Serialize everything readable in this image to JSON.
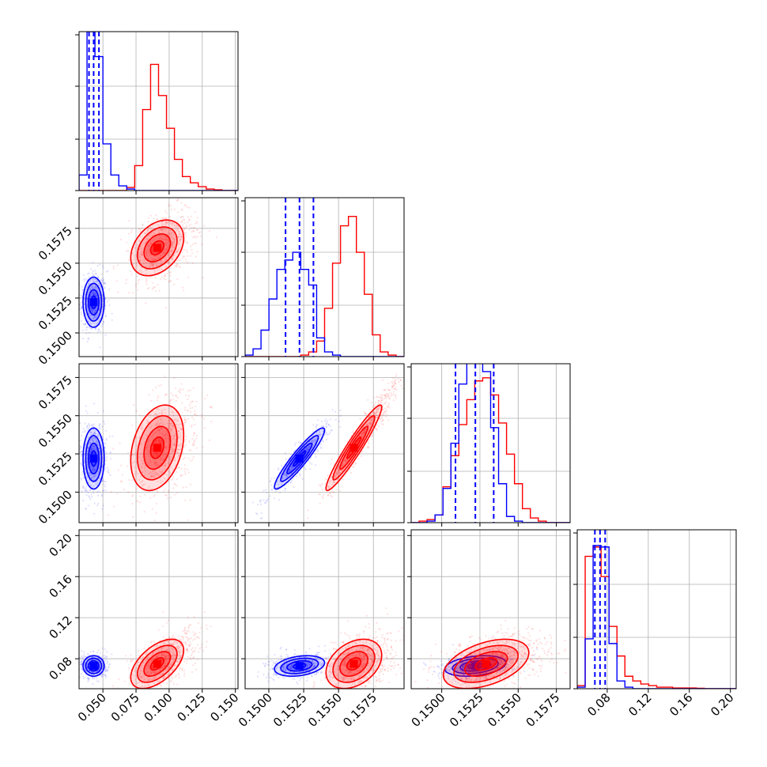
{
  "chart_data": {
    "type": "corner",
    "grid": true,
    "colors": {
      "blue": "#0000ff",
      "red": "#ff0000"
    },
    "n_params": 4,
    "axis_ranges": [
      [
        0.032,
        0.152
      ],
      [
        0.1483,
        0.1597
      ],
      [
        0.148,
        0.1584
      ],
      [
        0.0508,
        0.2056
      ]
    ],
    "tick_values": [
      [
        0.05,
        0.075,
        0.1,
        0.125,
        0.15
      ],
      [
        0.15,
        0.1525,
        0.155,
        0.1575
      ],
      [
        0.15,
        0.1525,
        0.155,
        0.1575
      ],
      [
        0.08,
        0.12,
        0.16,
        0.2
      ]
    ],
    "tick_labels": [
      [
        "0.050",
        "0.075",
        "0.100",
        "0.125",
        "0.150"
      ],
      [
        "0.1500",
        "0.1525",
        "0.1550",
        "0.1575"
      ],
      [
        "0.1500",
        "0.1525",
        "0.1550",
        "0.1575"
      ],
      [
        "0.08",
        "0.12",
        "0.16",
        "0.20"
      ]
    ],
    "series": [
      {
        "color": "blue",
        "mean": [
          0.043,
          0.1522,
          0.1522,
          0.073
        ],
        "std": [
          0.004,
          0.0009,
          0.001,
          0.005
        ],
        "quantiles": [
          [
            0.0395,
            0.043,
            0.047
          ],
          [
            0.1512,
            0.1522,
            0.1532
          ],
          [
            0.1509,
            0.1522,
            0.1534
          ],
          [
            0.068,
            0.073,
            0.078
          ]
        ]
      },
      {
        "color": "red",
        "mean": [
          0.091,
          0.1561,
          0.1529,
          0.075
        ],
        "std": [
          0.01,
          0.001,
          0.0014,
          0.012
        ]
      }
    ],
    "histograms": [
      {
        "param": 0,
        "bin_edges": [
          0.032,
          0.038,
          0.044,
          0.05,
          0.056,
          0.062,
          0.068,
          0.074,
          0.08,
          0.086,
          0.092,
          0.098,
          0.104,
          0.11,
          0.116,
          0.122,
          0.128,
          0.134,
          0.14,
          0.146,
          0.152
        ],
        "blue": [
          0.1,
          1.02,
          0.86,
          0.3,
          0.1,
          0.03,
          0.01,
          0,
          0,
          0,
          0,
          0,
          0,
          0,
          0,
          0,
          0,
          0,
          0,
          0
        ],
        "red": [
          0,
          0,
          0,
          0,
          0,
          0,
          0.02,
          0.16,
          0.52,
          0.81,
          0.61,
          0.4,
          0.2,
          0.09,
          0.05,
          0.025,
          0.01,
          0.005,
          0,
          0
        ],
        "ymax": 1.0
      },
      {
        "param": 1,
        "bin_edges": [
          0.1483,
          0.14887,
          0.14944,
          0.15001,
          0.15058,
          0.15115,
          0.15172,
          0.15229,
          0.15286,
          0.15343,
          0.154,
          0.15457,
          0.15514,
          0.15571,
          0.15628,
          0.15685,
          0.15742,
          0.15799,
          0.15856,
          0.15913,
          0.1597
        ],
        "blue": [
          0.01,
          0.05,
          0.17,
          0.37,
          0.56,
          0.62,
          0.67,
          0.56,
          0.46,
          0.12,
          0.03,
          0.01,
          0,
          0,
          0,
          0,
          0,
          0,
          0,
          0
        ],
        "red": [
          0,
          0,
          0,
          0,
          0,
          0,
          0,
          0.01,
          0.03,
          0.1,
          0.31,
          0.6,
          0.84,
          0.9,
          0.67,
          0.4,
          0.14,
          0.03,
          0.01,
          0
        ],
        "ymax": 1.0
      },
      {
        "param": 2,
        "bin_edges": [
          0.148,
          0.14852,
          0.14904,
          0.14956,
          0.15008,
          0.1506,
          0.15112,
          0.15164,
          0.15216,
          0.15268,
          0.1532,
          0.15372,
          0.15424,
          0.15476,
          0.15528,
          0.1558,
          0.15632,
          0.15684,
          0.15736,
          0.15788,
          0.1584
        ],
        "blue": [
          0,
          0,
          0.01,
          0.05,
          0.22,
          0.51,
          0.89,
          1.12,
          1.03,
          0.97,
          0.61,
          0.25,
          0.04,
          0.01,
          0,
          0,
          0,
          0,
          0,
          0
        ],
        "red": [
          0,
          0.01,
          0.02,
          0.05,
          0.23,
          0.43,
          0.63,
          0.79,
          0.91,
          0.93,
          0.82,
          0.64,
          0.44,
          0.25,
          0.09,
          0.03,
          0.01,
          0,
          0,
          0
        ],
        "ymax": 1.0
      },
      {
        "param": 3,
        "bin_edges": [
          0.0508,
          0.05854,
          0.06628,
          0.07402,
          0.08176,
          0.0895,
          0.09724,
          0.10498,
          0.11272,
          0.12046,
          0.1282,
          0.13594,
          0.14368,
          0.15142,
          0.15916,
          0.1669,
          0.17464,
          0.18238,
          0.19012,
          0.19786,
          0.2056
        ],
        "blue": [
          0.01,
          0.32,
          0.92,
          0.91,
          0.29,
          0.05,
          0.01,
          0,
          0,
          0,
          0,
          0,
          0,
          0,
          0,
          0,
          0,
          0,
          0,
          0
        ],
        "red": [
          0.02,
          0.85,
          0.91,
          0.72,
          0.4,
          0.21,
          0.08,
          0.05,
          0.03,
          0.02,
          0.01,
          0.01,
          0.005,
          0.005,
          0.005,
          0.003,
          0,
          0,
          0,
          0
        ],
        "ymax": 1.0
      }
    ]
  }
}
